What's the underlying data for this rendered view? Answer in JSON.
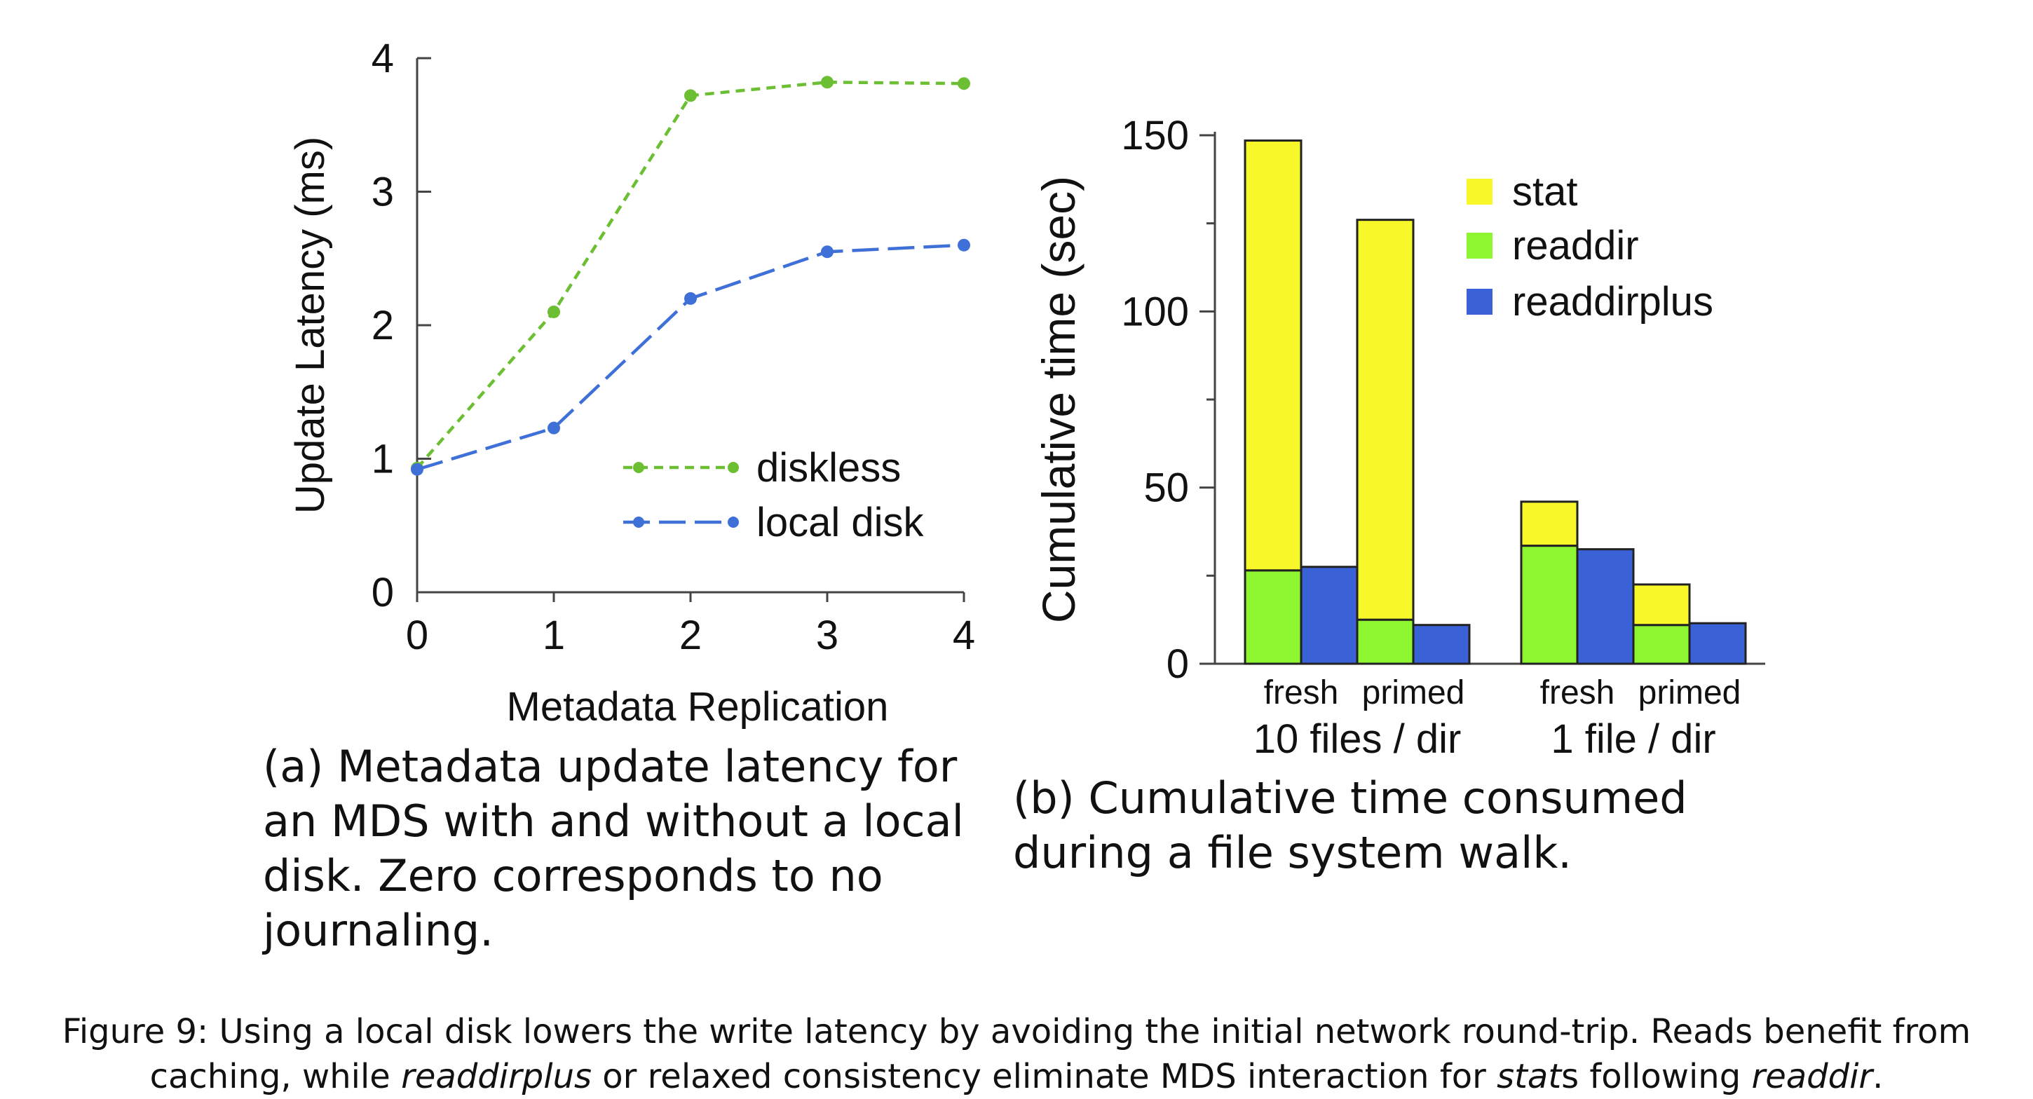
{
  "chart_data": [
    {
      "type": "line",
      "panel": "a",
      "title": "",
      "xlabel": "Metadata Replication",
      "ylabel": "Update Latency (ms)",
      "x": [
        0,
        1,
        2,
        3,
        4
      ],
      "xticks": [
        "0",
        "1",
        "2",
        "3",
        "4"
      ],
      "yticks": [
        "0",
        "1",
        "2",
        "3",
        "4"
      ],
      "xlim": [
        0,
        4
      ],
      "ylim": [
        0,
        4
      ],
      "legend_position": "center-right",
      "series": [
        {
          "name": "diskless",
          "color": "#6cbf32",
          "style": "dotted",
          "values": [
            0.93,
            2.1,
            3.72,
            3.82,
            3.81
          ]
        },
        {
          "name": "local disk",
          "color": "#3f70d8",
          "style": "dashed",
          "values": [
            0.92,
            1.23,
            2.2,
            2.55,
            2.6
          ]
        }
      ]
    },
    {
      "type": "bar",
      "panel": "b",
      "stacked": true,
      "title": "",
      "ylabel": "Cumulative time (sec)",
      "yticks": [
        "0",
        "50",
        "100",
        "150"
      ],
      "ylim": [
        0,
        150
      ],
      "legend_position": "top-right",
      "groups": [
        {
          "label": "10 files / dir",
          "bar_labels": [
            "fresh",
            "primed"
          ]
        },
        {
          "label": "1 file / dir",
          "bar_labels": [
            "fresh",
            "primed"
          ]
        }
      ],
      "bars": [
        {
          "group": 0,
          "condition": "fresh",
          "method": "readdir",
          "segments": [
            {
              "series": "readdir",
              "value": 26.5
            },
            {
              "series": "stat",
              "value": 122
            }
          ]
        },
        {
          "group": 0,
          "condition": "fresh",
          "method": "readdirplus",
          "segments": [
            {
              "series": "readdirplus",
              "value": 27.5
            }
          ]
        },
        {
          "group": 0,
          "condition": "primed",
          "method": "readdir",
          "segments": [
            {
              "series": "readdir",
              "value": 12.5
            },
            {
              "series": "stat",
              "value": 113.5
            }
          ]
        },
        {
          "group": 0,
          "condition": "primed",
          "method": "readdirplus",
          "segments": [
            {
              "series": "readdirplus",
              "value": 11
            }
          ]
        },
        {
          "group": 1,
          "condition": "fresh",
          "method": "readdir",
          "segments": [
            {
              "series": "readdir",
              "value": 33.5
            },
            {
              "series": "stat",
              "value": 12.5
            }
          ]
        },
        {
          "group": 1,
          "condition": "fresh",
          "method": "readdirplus",
          "segments": [
            {
              "series": "readdirplus",
              "value": 32.5
            }
          ]
        },
        {
          "group": 1,
          "condition": "primed",
          "method": "readdir",
          "segments": [
            {
              "series": "readdir",
              "value": 11
            },
            {
              "series": "stat",
              "value": 11.5
            }
          ]
        },
        {
          "group": 1,
          "condition": "primed",
          "method": "readdirplus",
          "segments": [
            {
              "series": "readdirplus",
              "value": 11.5
            }
          ]
        }
      ],
      "series": [
        {
          "name": "stat",
          "color": "#f7f729"
        },
        {
          "name": "readdir",
          "color": "#8ef531"
        },
        {
          "name": "readdirplus",
          "color": "#3a62d6"
        }
      ]
    }
  ],
  "captions": {
    "a": "(a) Metadata update latency for an MDS with and without a local disk. Zero corresponds to no journaling.",
    "b": "(b) Cumulative time consumed during a file system walk.",
    "figure": {
      "t1": "Figure 9: Using a local disk lowers the write latency by avoiding the initial network round-trip. Reads benefit from caching, while ",
      "e1": "readdirplus",
      "t2": " or relaxed consistency eliminate MDS interaction for ",
      "e2": "stat",
      "t3": "s following ",
      "e3": "readdir",
      "t4": "."
    }
  }
}
